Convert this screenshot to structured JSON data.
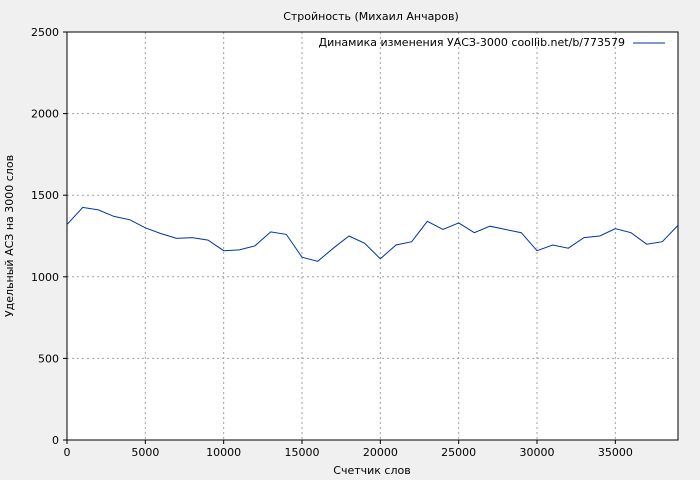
{
  "chart_data": {
    "type": "line",
    "title": "Стройность (Михаил Анчаров)",
    "xlabel": "Счетчик слов",
    "ylabel": "Удельный АСЗ на 3000 слов",
    "xlim": [
      0,
      39000
    ],
    "ylim": [
      0,
      2500
    ],
    "xticks": [
      0,
      5000,
      10000,
      15000,
      20000,
      25000,
      30000,
      35000
    ],
    "yticks": [
      0,
      500,
      1000,
      1500,
      2000,
      2500
    ],
    "grid": true,
    "legend_position": "top-right",
    "series": [
      {
        "name": "Динамика изменения УАСЗ-3000 coollib.net/b/773579",
        "color": "#0033aa",
        "x": [
          0,
          1000,
          2000,
          3000,
          4000,
          5000,
          6000,
          7000,
          8000,
          9000,
          10000,
          11000,
          12000,
          13000,
          14000,
          15000,
          16000,
          17000,
          18000,
          19000,
          20000,
          21000,
          22000,
          23000,
          24000,
          25000,
          26000,
          27000,
          28000,
          29000,
          30000,
          31000,
          32000,
          33000,
          34000,
          35000,
          36000,
          37000,
          38000,
          39000
        ],
        "y": [
          1320,
          1425,
          1410,
          1370,
          1350,
          1300,
          1265,
          1235,
          1240,
          1225,
          1160,
          1165,
          1190,
          1275,
          1260,
          1120,
          1095,
          1175,
          1250,
          1205,
          1110,
          1195,
          1215,
          1340,
          1290,
          1330,
          1270,
          1310,
          1290,
          1270,
          1160,
          1195,
          1175,
          1240,
          1250,
          1295,
          1270,
          1200,
          1215,
          1315
        ]
      }
    ]
  }
}
